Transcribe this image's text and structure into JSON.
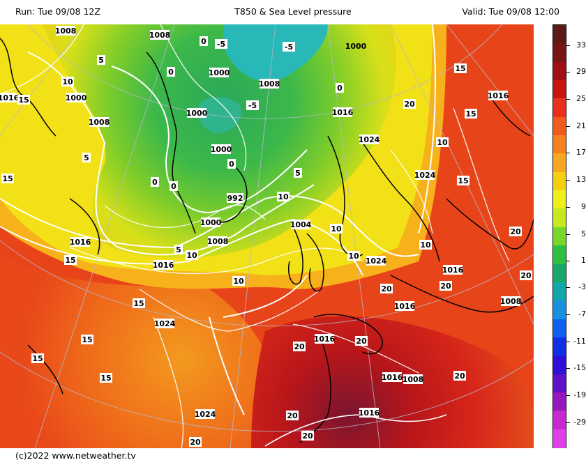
{
  "header": {
    "run": "Run: Tue 09/08 12Z",
    "title": "T850 & Sea Level pressure",
    "valid": "Valid: Tue 09/08 12:00"
  },
  "footer": {
    "credit": "(c)2022 www.netweather.tv"
  },
  "colorbar": {
    "labels": [
      "33",
      "29",
      "25",
      "21",
      "17",
      "13",
      "9",
      "5",
      "1",
      "-3",
      "-7",
      "-11",
      "-15",
      "-19",
      "-29"
    ],
    "colors": [
      "#5a1a1a",
      "#7a1515",
      "#a01010",
      "#c8140f",
      "#e8301a",
      "#f05a1e",
      "#f5821e",
      "#f8a81e",
      "#f5d010",
      "#f0f018",
      "#c8e820",
      "#78d828",
      "#30c040",
      "#18a868",
      "#10a8a8",
      "#1890e0",
      "#1060f0",
      "#1030e8",
      "#3010d8",
      "#6010c8",
      "#9818c0",
      "#c828d0",
      "#e040e8"
    ]
  },
  "map": {
    "pressure_labels": [
      "1008",
      "1008",
      "1000",
      "1000",
      "1008",
      "1008",
      "1000",
      "1000",
      "1016",
      "1016",
      "1000",
      "1016",
      "1024",
      "1004",
      "1024",
      "992",
      "1008",
      "1000",
      "1016",
      "1016",
      "1024",
      "1016",
      "1008",
      "1024",
      "1016",
      "1016",
      "1016",
      "1024",
      "1016",
      "1008"
    ],
    "temp_labels": [
      "5",
      "-5",
      "-5",
      "-5",
      "0",
      "0",
      "0",
      "0",
      "10",
      "15",
      "5",
      "10",
      "0",
      "0",
      "10",
      "5",
      "10",
      "10",
      "10",
      "15",
      "10",
      "15",
      "15",
      "5",
      "10",
      "15",
      "15",
      "15",
      "20",
      "20",
      "15",
      "20",
      "20",
      "20",
      "20",
      "20",
      "15",
      "15",
      "20",
      "20",
      "20",
      "20"
    ]
  }
}
